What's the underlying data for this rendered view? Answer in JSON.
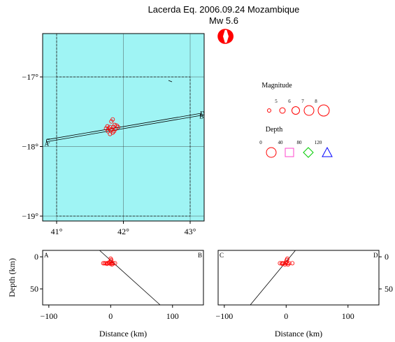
{
  "title": "Lacerda Eq. 2006.09.24 Mozambique",
  "subtitle": "Mw 5.6",
  "map": {
    "lon_ticks": [
      {
        "v": 41,
        "label": "41°"
      },
      {
        "v": 42,
        "label": "42°"
      },
      {
        "v": 43,
        "label": "43°"
      }
    ],
    "lat_ticks": [
      {
        "v": -17,
        "label": "−17°"
      },
      {
        "v": -18,
        "label": "−18°"
      },
      {
        "v": -19,
        "label": "−19°"
      }
    ],
    "background_color": "#9ff4f4",
    "line_labels": {
      "A": "A",
      "B": "B",
      "C": "C",
      "D": "D"
    },
    "section_lines": [
      {
        "start": [
          40.86,
          -17.93
        ],
        "end": [
          43.18,
          -17.55
        ]
      },
      {
        "start": [
          40.86,
          -17.9
        ],
        "end": [
          43.18,
          -17.52
        ]
      }
    ],
    "quakes": [
      [
        41.84,
        -17.61
      ],
      [
        41.82,
        -17.64
      ],
      [
        41.87,
        -17.69
      ],
      [
        41.76,
        -17.71
      ],
      [
        41.8,
        -17.72
      ],
      [
        41.85,
        -17.72
      ],
      [
        41.92,
        -17.72
      ],
      [
        41.74,
        -17.74
      ],
      [
        41.78,
        -17.74
      ],
      [
        41.83,
        -17.75
      ],
      [
        41.88,
        -17.75
      ],
      [
        41.81,
        -17.77
      ],
      [
        41.86,
        -17.78
      ],
      [
        41.77,
        -17.78
      ],
      [
        41.84,
        -17.8
      ],
      [
        41.8,
        -17.82
      ],
      [
        41.9,
        -17.7
      ]
    ]
  },
  "legend": {
    "magnitude_label": "Magnitude",
    "magnitudes": [
      {
        "label": "5",
        "r": 2.5
      },
      {
        "label": "6",
        "r": 4
      },
      {
        "label": "7",
        "r": 5.5
      },
      {
        "label": "8",
        "r": 7
      }
    ],
    "extra_size_r": 8,
    "depth_label": "Depth",
    "depths": [
      {
        "label": "0",
        "symbol": "circle",
        "color": "#ff0000"
      },
      {
        "label": "40",
        "symbol": "square",
        "color": "#ff44cc"
      },
      {
        "label": "80",
        "symbol": "diamond",
        "color": "#00cc00"
      },
      {
        "label": "120",
        "symbol": "triangle",
        "color": "#0000ff"
      }
    ]
  },
  "cross_sections": {
    "ylabel": "Depth (km)",
    "xlabel": "Distance (km)",
    "x_ticks": [
      {
        "v": -100,
        "label": "−100"
      },
      {
        "v": 0,
        "label": "0"
      },
      {
        "v": 100,
        "label": "100"
      }
    ],
    "y_ticks": [
      {
        "v": 0,
        "label": "0"
      },
      {
        "v": 50,
        "label": "50"
      }
    ],
    "xlim": [
      -110,
      150
    ],
    "ylim": [
      75,
      -10
    ],
    "left": {
      "start_label": "A",
      "end_label": "B",
      "line": [
        [
          -18,
          -10
        ],
        [
          80,
          75
        ]
      ],
      "quakes": [
        [
          -12,
          10
        ],
        [
          -8,
          10
        ],
        [
          -5,
          10
        ],
        [
          -2,
          10
        ],
        [
          0,
          11
        ],
        [
          2,
          10
        ],
        [
          4,
          10
        ],
        [
          7,
          10
        ],
        [
          -3,
          9
        ],
        [
          0,
          7
        ],
        [
          1,
          5
        ],
        [
          0,
          3
        ],
        [
          2,
          12
        ],
        [
          -6,
          11
        ],
        [
          -10,
          10
        ]
      ]
    },
    "right": {
      "start_label": "C",
      "end_label": "D",
      "line": [
        [
          15,
          -10
        ],
        [
          -58,
          75
        ]
      ],
      "quakes": [
        [
          -10,
          10
        ],
        [
          -7,
          10
        ],
        [
          -4,
          10
        ],
        [
          -1,
          10
        ],
        [
          2,
          10
        ],
        [
          5,
          10
        ],
        [
          10,
          10
        ],
        [
          0,
          8
        ],
        [
          1,
          5
        ],
        [
          2,
          3
        ],
        [
          -2,
          12
        ],
        [
          3,
          12
        ],
        [
          -6,
          11
        ]
      ]
    }
  }
}
